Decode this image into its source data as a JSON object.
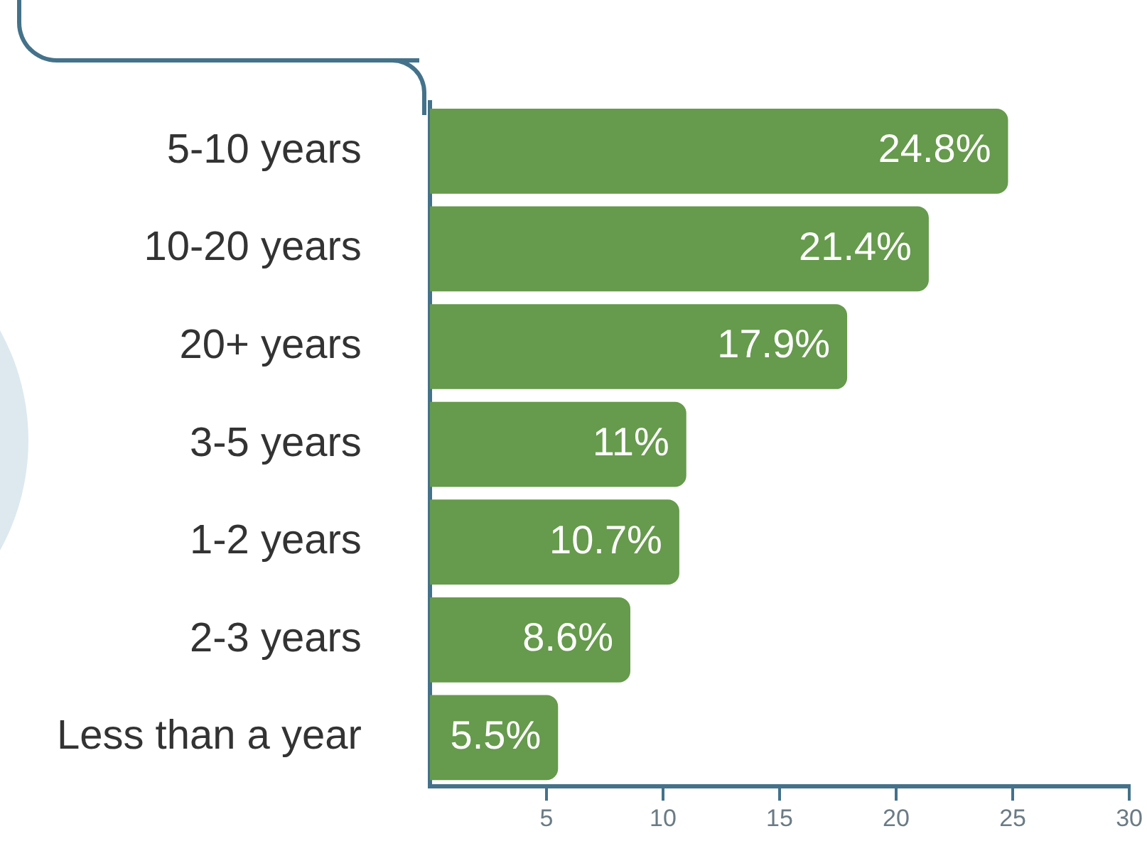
{
  "chart_data": {
    "type": "bar",
    "orientation": "horizontal",
    "categories": [
      "5-10 years",
      "10-20 years",
      "20+ years",
      "3-5 years",
      "1-2 years",
      "2-3 years",
      "Less than a year"
    ],
    "values": [
      24.8,
      21.4,
      17.9,
      11,
      10.7,
      8.6,
      5.5
    ],
    "value_labels": [
      "24.8%",
      "21.4%",
      "17.9%",
      "11%",
      "10.7%",
      "8.6%",
      "5.5%"
    ],
    "color": "#669a4c",
    "xlim": [
      0,
      30
    ],
    "xticks": [
      5,
      10,
      15,
      20,
      25,
      30
    ],
    "grid": false,
    "legend": false
  }
}
